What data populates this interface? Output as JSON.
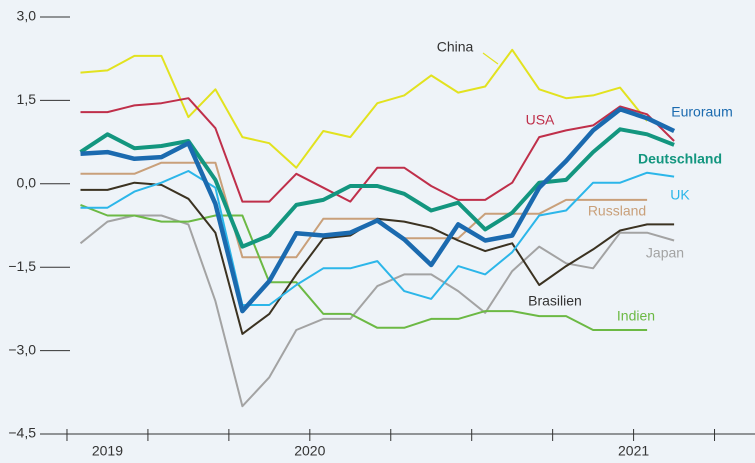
{
  "chart_data": {
    "type": "line",
    "x": [
      0,
      1,
      2,
      3,
      4,
      5,
      6,
      7,
      8,
      9,
      10,
      11,
      12,
      13,
      14,
      15,
      16,
      17,
      18,
      19,
      20,
      21,
      22
    ],
    "xlim": [
      -1.5,
      25
    ],
    "xticks": [
      -0.5,
      2.5,
      5.5,
      8.5,
      11.5,
      14.5,
      17.5,
      20.5,
      23.5
    ],
    "xlabels": [
      {
        "value": 1,
        "label": "2019"
      },
      {
        "value": 8.5,
        "label": "2020"
      },
      {
        "value": 20.5,
        "label": "2021"
      }
    ],
    "ylim": [
      -4.5,
      3.0
    ],
    "yticks": [
      {
        "value": 3.0,
        "label": "3,0"
      },
      {
        "value": 1.5,
        "label": "1,5"
      },
      {
        "value": 0,
        "label": "0,0"
      },
      {
        "value": -1.5,
        "label": "−1,5"
      },
      {
        "value": -3.0,
        "label": "−3,0"
      },
      {
        "value": -4.5,
        "label": "−4,5"
      }
    ],
    "grid": false,
    "series": [
      {
        "name": "China",
        "color": "#e2e21f",
        "values": [
          2.0,
          2.04,
          2.3,
          2.3,
          1.2,
          1.7,
          0.84,
          0.73,
          0.29,
          0.95,
          0.84,
          1.45,
          1.59,
          1.95,
          1.64,
          1.75,
          2.41,
          1.7,
          1.54,
          1.59,
          1.73,
          1.13,
          null
        ]
      },
      {
        "name": "USA",
        "color": "#bf2f4a",
        "values": [
          1.29,
          1.29,
          1.41,
          1.45,
          1.54,
          1.0,
          -0.32,
          -0.32,
          0.18,
          -0.07,
          -0.32,
          0.29,
          0.29,
          -0.04,
          -0.29,
          -0.29,
          0.02,
          0.84,
          0.96,
          1.05,
          1.39,
          1.25,
          0.77
        ]
      },
      {
        "name": "Russland",
        "color": "#c9a07a",
        "values": [
          0.18,
          0.18,
          0.18,
          0.38,
          0.38,
          0.38,
          -1.32,
          -1.32,
          -1.32,
          -0.63,
          -0.63,
          -0.63,
          -0.98,
          -0.98,
          -0.98,
          -0.54,
          -0.54,
          -0.54,
          -0.29,
          -0.29,
          -0.29,
          -0.29,
          null
        ]
      },
      {
        "name": "Japan",
        "color": "#a3a3a3",
        "values": [
          -1.07,
          -0.68,
          -0.57,
          -0.57,
          -0.73,
          -2.11,
          -4.0,
          -3.48,
          -2.63,
          -2.43,
          -2.43,
          -1.84,
          -1.63,
          -1.63,
          -1.93,
          -2.32,
          -1.57,
          -1.13,
          -1.43,
          -1.52,
          -0.88,
          -0.88,
          -1.02
        ]
      },
      {
        "name": "Indien",
        "color": "#6cb944",
        "values": [
          -0.38,
          -0.57,
          -0.57,
          -0.68,
          -0.68,
          -0.57,
          -0.57,
          -1.77,
          -1.77,
          -2.34,
          -2.34,
          -2.59,
          -2.59,
          -2.43,
          -2.43,
          -2.29,
          -2.29,
          -2.38,
          -2.38,
          -2.63,
          -2.63,
          -2.63,
          null
        ]
      },
      {
        "name": "Brasilien",
        "color": "#3b3221",
        "values": [
          -0.11,
          -0.11,
          0.02,
          -0.02,
          -0.27,
          -0.88,
          -2.7,
          -2.34,
          -1.63,
          -0.98,
          -0.93,
          -0.63,
          -0.68,
          -0.79,
          -1.02,
          -1.21,
          -1.07,
          -1.82,
          -1.48,
          -1.18,
          -0.84,
          -0.73,
          -0.73
        ]
      },
      {
        "name": "UK",
        "color": "#2cb6e9",
        "values": [
          -0.43,
          -0.43,
          -0.14,
          0.02,
          0.23,
          -0.07,
          -2.18,
          -2.18,
          -1.82,
          -1.52,
          -1.52,
          -1.39,
          -1.93,
          -2.07,
          -1.48,
          -1.63,
          -1.23,
          -0.57,
          -0.48,
          0.02,
          0.02,
          0.2,
          0.13
        ]
      },
      {
        "name": "Deutschland",
        "color": "#13967f",
        "values": [
          0.57,
          0.89,
          0.64,
          0.68,
          0.77,
          0.07,
          -1.13,
          -0.93,
          -0.38,
          -0.29,
          -0.04,
          -0.04,
          -0.18,
          -0.48,
          -0.34,
          -0.82,
          -0.52,
          0.02,
          0.07,
          0.57,
          0.98,
          0.89,
          0.7
        ]
      },
      {
        "name": "Euroraum",
        "color": "#1b6aaf",
        "values": [
          0.54,
          0.57,
          0.45,
          0.48,
          0.73,
          -0.36,
          -2.29,
          -1.75,
          -0.89,
          -0.93,
          -0.88,
          -0.66,
          -1.0,
          -1.46,
          -0.73,
          -1.02,
          -0.93,
          -0.07,
          0.41,
          0.96,
          1.34,
          1.18,
          0.95
        ]
      }
    ]
  }
}
